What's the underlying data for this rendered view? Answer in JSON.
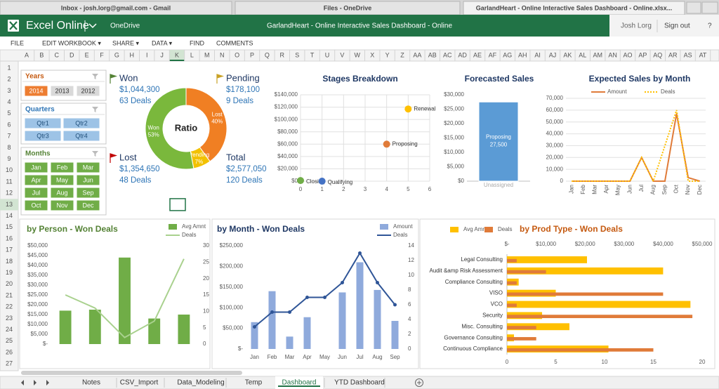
{
  "browser_tabs": [
    "Inbox - josh.lorg@gmail.com - Gmail",
    "Files - OneDrive",
    "GarlandHeart - Online Interactive Sales Dashboard - Online.xlsx..."
  ],
  "app": {
    "name": "Excel Online",
    "location": "OneDrive",
    "doc_title": "GarlandHeart - Online Interactive Sales Dashboard - Online",
    "user": "Josh Lorg",
    "sign_out": "Sign out",
    "help": "?"
  },
  "menu": [
    "FILE",
    "EDIT WORKBOOK ▾",
    "SHARE ▾",
    "DATA ▾",
    "FIND",
    "COMMENTS"
  ],
  "columns": [
    "A",
    "B",
    "C",
    "D",
    "E",
    "F",
    "G",
    "H",
    "I",
    "J",
    "K",
    "L",
    "M",
    "N",
    "O",
    "P",
    "Q",
    "R",
    "S",
    "T",
    "U",
    "V",
    "W",
    "X",
    "Y",
    "Z",
    "AA",
    "AB",
    "AC",
    "AD",
    "AE",
    "AF",
    "AG",
    "AH",
    "AI",
    "AJ",
    "AK",
    "AL",
    "AM",
    "AN",
    "AO",
    "AP",
    "AQ",
    "AR",
    "AS",
    "AT"
  ],
  "rows": [
    1,
    2,
    3,
    4,
    5,
    6,
    7,
    8,
    9,
    10,
    11,
    12,
    13,
    14,
    15,
    16,
    17,
    18,
    19,
    20,
    21,
    22,
    23,
    24,
    25,
    26,
    27
  ],
  "selected": {
    "column": "K",
    "row": 13
  },
  "slicers": [
    {
      "title": "Years",
      "items": [
        "2014",
        "2013",
        "2012"
      ],
      "selected": [
        "2014"
      ]
    },
    {
      "title": "Quarters",
      "items": [
        "Qtr1",
        "Qtr2",
        "Qtr3",
        "Qtr4"
      ]
    },
    {
      "title": "Months",
      "items": [
        "Jan",
        "Feb",
        "Mar",
        "Apr",
        "May",
        "Jun",
        "Jul",
        "Aug",
        "Sep",
        "Oct",
        "Nov",
        "Dec"
      ]
    }
  ],
  "kpis": [
    {
      "label": "Won",
      "amount": "$1,044,300",
      "deals": "63 Deals"
    },
    {
      "label": "Pending",
      "amount": "$178,100",
      "deals": "9 Deals"
    },
    {
      "label": "Lost",
      "amount": "$1,354,650",
      "deals": "48 Deals"
    },
    {
      "label": "Total",
      "amount": "$2,577,050",
      "deals": "120 Deals"
    }
  ],
  "chart_data": [
    {
      "type": "pie",
      "title": "Ratio",
      "categories": [
        "Lost",
        "Pending",
        "Won"
      ],
      "values": [
        40,
        7,
        53
      ],
      "value_labels": [
        "40%",
        "7%",
        "53%"
      ],
      "colors": [
        "#f07f23",
        "#f2c100",
        "#7ab83c"
      ]
    },
    {
      "type": "scatter",
      "title": "Stages Breakdown",
      "x": [
        0,
        1,
        4,
        5
      ],
      "values": [
        1000,
        0,
        60000,
        117000
      ],
      "point_labels": [
        "Closing",
        "Qualifying",
        "Proposing",
        "Renewal"
      ],
      "colors": [
        "#70ad47",
        "#4472c4",
        "#e07b39",
        "#ffc000"
      ],
      "xlim": [
        0,
        6
      ],
      "xticks": [
        0,
        1,
        2,
        3,
        4,
        5,
        6
      ],
      "ylim": [
        0,
        140000
      ],
      "yticks": [
        {
          "value": 0,
          "label": "$0"
        },
        {
          "value": 20000,
          "label": "$20,000"
        },
        {
          "value": 40000,
          "label": "$40,000"
        },
        {
          "value": 60000,
          "label": "$60,000"
        },
        {
          "value": 80000,
          "label": "$80,000"
        },
        {
          "value": 100000,
          "label": "$100,000"
        },
        {
          "value": 120000,
          "label": "$120,000"
        },
        {
          "value": 140000,
          "label": "$140,000"
        }
      ],
      "grid": true
    },
    {
      "type": "bar",
      "title": "Forecasted Sales",
      "series": [
        {
          "name": "Unassigned",
          "color": "#5b9bd5",
          "values": [
            0
          ]
        },
        {
          "name": "Proposing",
          "color": "#5b9bd5",
          "values": [
            27500
          ],
          "value_labels": [
            "27,500"
          ]
        }
      ],
      "ylim": [
        0,
        30000
      ],
      "yticks": [
        {
          "value": 0,
          "label": "$0"
        },
        {
          "value": 5000,
          "label": "$5,000"
        },
        {
          "value": 10000,
          "label": "$10,000"
        },
        {
          "value": 15000,
          "label": "$15,000"
        },
        {
          "value": 20000,
          "label": "$20,000"
        },
        {
          "value": 25000,
          "label": "$25,000"
        },
        {
          "value": 30000,
          "label": "$30,000"
        }
      ]
    },
    {
      "type": "line",
      "title": "Expected Sales by Month",
      "categories": [
        "Jan",
        "Feb",
        "Mar",
        "Apr",
        "May",
        "Jun",
        "Jul",
        "Aug",
        "Sep",
        "Oct",
        "Nov",
        "Dec"
      ],
      "series": [
        {
          "name": "Amount",
          "color": "#e07b39",
          "values": [
            0,
            0,
            0,
            0,
            0,
            0,
            20000,
            0,
            0,
            57000,
            3000,
            0
          ]
        },
        {
          "name": "Deals",
          "color": "#ffc000",
          "dashed": true,
          "values": [
            0,
            0,
            0,
            0,
            0,
            0,
            20000,
            0,
            30000,
            60000,
            0,
            0
          ]
        }
      ],
      "ylim": [
        0,
        70000
      ],
      "yticks": [
        0,
        {
          "value": 10000,
          "label": "10,000"
        },
        {
          "value": 20000,
          "label": "20,000"
        },
        {
          "value": 30000,
          "label": "30,000"
        },
        {
          "value": 40000,
          "label": "40,000"
        },
        {
          "value": 50000,
          "label": "50,000"
        },
        {
          "value": 60000,
          "label": "60,000"
        },
        {
          "value": 70000,
          "label": "70,000"
        }
      ],
      "grid": true
    },
    {
      "type": "combo",
      "title": "by Person - Won Deals",
      "categories": [
        null,
        null,
        null,
        null,
        null
      ],
      "series": [
        {
          "name": "Avg Amnt",
          "type": "bar",
          "color": "#70ad47",
          "values": [
            17000,
            17500,
            44000,
            13000,
            15000
          ]
        },
        {
          "name": "Deals",
          "type": "line",
          "axis": "y2",
          "color": "#a9d18e",
          "values": [
            15,
            11,
            2,
            7,
            26
          ]
        }
      ],
      "ylim": [
        0,
        50000
      ],
      "yticks": [
        {
          "value": 0,
          "label": "$-"
        },
        {
          "value": 5000,
          "label": "$5,000"
        },
        {
          "value": 10000,
          "label": "$10,000"
        },
        {
          "value": 15000,
          "label": "$15,000"
        },
        {
          "value": 20000,
          "label": "$20,000"
        },
        {
          "value": 25000,
          "label": "$25,000"
        },
        {
          "value": 30000,
          "label": "$30,000"
        },
        {
          "value": 35000,
          "label": "$35,000"
        },
        {
          "value": 40000,
          "label": "$40,000"
        },
        {
          "value": 45000,
          "label": "$45,000"
        },
        {
          "value": 50000,
          "label": "$50,000"
        }
      ],
      "y2lim": [
        0,
        30
      ],
      "y2ticks": [
        0,
        5,
        10,
        15,
        20,
        25,
        30
      ]
    },
    {
      "type": "combo",
      "title": "by Month - Won Deals",
      "categories": [
        "Jan",
        "Feb",
        "Mar",
        "Apr",
        "May",
        "Jun",
        "Jul",
        "Aug",
        "Sep"
      ],
      "series": [
        {
          "name": "Amount",
          "type": "bar",
          "color": "#8faadc",
          "values": [
            65000,
            140000,
            30000,
            77000,
            0,
            137000,
            210000,
            143000,
            68000
          ]
        },
        {
          "name": "Deals",
          "type": "line",
          "axis": "y2",
          "color": "#2f5597",
          "markers": true,
          "values": [
            3,
            5,
            5,
            7,
            7,
            9,
            13,
            9,
            6
          ]
        }
      ],
      "ylim": [
        0,
        250000
      ],
      "yticks": [
        {
          "value": 0,
          "label": "$-"
        },
        {
          "value": 50000,
          "label": "$50,000"
        },
        {
          "value": 100000,
          "label": "$100,000"
        },
        {
          "value": 150000,
          "label": "$150,000"
        },
        {
          "value": 200000,
          "label": "$200,000"
        },
        {
          "value": 250000,
          "label": "$250,000"
        }
      ],
      "y2lim": [
        0,
        14
      ],
      "y2ticks": [
        0,
        2,
        4,
        6,
        8,
        10,
        12,
        14
      ]
    },
    {
      "type": "hbar",
      "title": "by Prod Type - Won Deals",
      "categories": [
        "Legal Consulting",
        "Audit &amp Risk Assessment",
        "Compliance Consulting",
        "VISO",
        "VCO",
        "Security",
        "Misc. Consulting",
        "Governance Consulting",
        "Continuous Compliance"
      ],
      "series": [
        {
          "name": "Avg Amnt",
          "axis": "x",
          "color": "#ffc000",
          "values": [
            20500,
            40000,
            3000,
            12500,
            47000,
            9000,
            16000,
            1800,
            26000
          ]
        },
        {
          "name": "Deals",
          "axis": "x2",
          "color": "#e07b39",
          "values": [
            1,
            4,
            1,
            16,
            1,
            19,
            3,
            3,
            15
          ]
        }
      ],
      "xlim": [
        0,
        50000
      ],
      "xticks": [
        {
          "value": 0,
          "label": "$-"
        },
        {
          "value": 10000,
          "label": "$10,000"
        },
        {
          "value": 20000,
          "label": "$20,000"
        },
        {
          "value": 30000,
          "label": "$30,000"
        },
        {
          "value": 40000,
          "label": "$40,000"
        },
        {
          "value": 50000,
          "label": "$50,000"
        }
      ],
      "x2lim": [
        0,
        20
      ],
      "x2ticks": [
        0,
        5,
        10,
        15,
        20
      ]
    }
  ],
  "sheet_tabs": [
    "Notes",
    "CSV_Import",
    "Data_Modeling",
    "Temp",
    "Dashboard",
    "YTD Dashboard"
  ],
  "active_sheet": "Dashboard"
}
